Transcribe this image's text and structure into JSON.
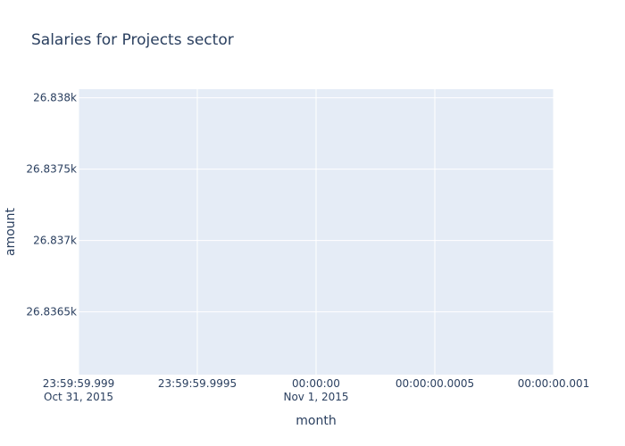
{
  "chart_data": {
    "type": "line",
    "title": "Salaries for Projects sector",
    "xlabel": "month",
    "ylabel": "amount",
    "x_ticks": [
      {
        "line1": "23:59:59.999",
        "line2": "Oct 31, 2015",
        "pos": 0.0
      },
      {
        "line1": "23:59:59.9995",
        "line2": "",
        "pos": 0.25
      },
      {
        "line1": "00:00:00",
        "line2": "Nov 1, 2015",
        "pos": 0.5
      },
      {
        "line1": "00:00:00.0005",
        "line2": "",
        "pos": 0.75
      },
      {
        "line1": "00:00:00.001",
        "line2": "",
        "pos": 1.0
      }
    ],
    "y_ticks": [
      {
        "label": "26.8365k",
        "value": 26836.5
      },
      {
        "label": "26.837k",
        "value": 26837.0
      },
      {
        "label": "26.8375k",
        "value": 26837.5
      },
      {
        "label": "26.838k",
        "value": 26838.0
      }
    ],
    "ylim": [
      26836.06,
      26838.06
    ],
    "grid": true,
    "series": [],
    "colors": {
      "plot_bg": "#e5ecf6",
      "paper_bg": "#ffffff",
      "grid": "#ffffff",
      "text": "#2a3f5f"
    }
  }
}
